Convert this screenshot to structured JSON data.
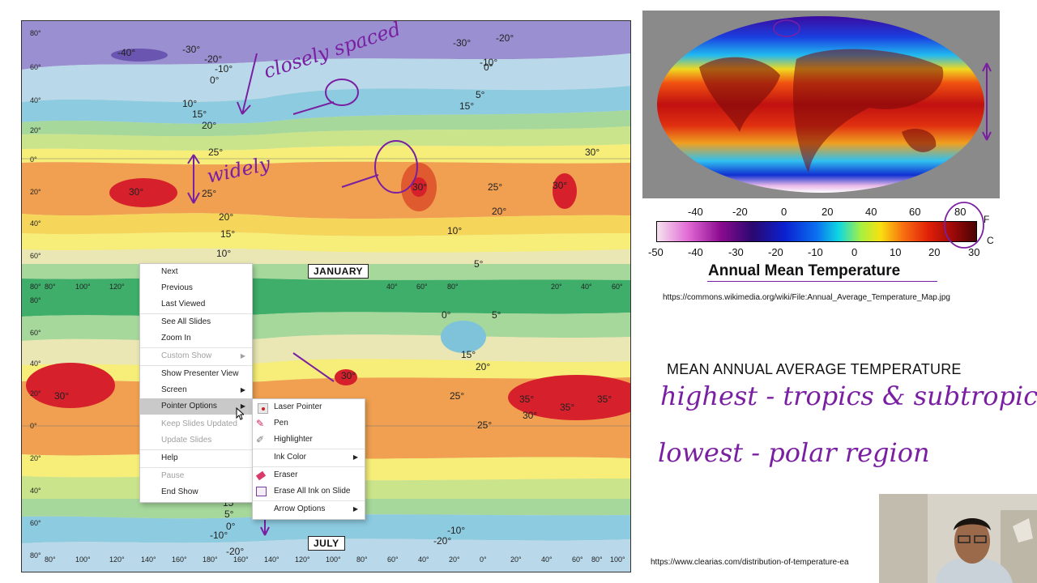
{
  "january_map": {
    "label": "JANUARY",
    "lat_labels": [
      "80°",
      "60°",
      "40°",
      "20°",
      "0°",
      "20°",
      "40°",
      "60°",
      "80°"
    ],
    "isotherm_labels": [
      "-40°",
      "-30°",
      "-20°",
      "-10°",
      "-30°",
      "-20°",
      "-10°",
      "0°",
      "10°",
      "15°",
      "20°",
      "25°",
      "30°",
      "30°",
      "30°",
      "30°",
      "25°",
      "20°",
      "20°",
      "15°",
      "10°",
      "10°",
      "5°",
      "0°",
      "5°",
      "15°",
      "25°"
    ],
    "lon_labels": [
      "80°",
      "100°",
      "120°",
      "40°",
      "60°",
      "80°",
      "20°",
      "40°",
      "60°"
    ]
  },
  "july_map": {
    "label": "JULY",
    "lat_labels": [
      "80°",
      "60°",
      "40°",
      "20°",
      "0°",
      "20°",
      "40°",
      "60°",
      "80°"
    ],
    "isotherm_labels": [
      "0°",
      "5°",
      "15°",
      "20°",
      "25°",
      "30°",
      "30°",
      "35°",
      "35°",
      "35°",
      "30°",
      "25°",
      "15°",
      "5°",
      "0°",
      "-10°",
      "-10°",
      "-20°",
      "-20°"
    ],
    "lon_labels": [
      "80°",
      "100°",
      "120°",
      "140°",
      "160°",
      "180°",
      "160°",
      "140°",
      "120°",
      "100°",
      "80°",
      "60°",
      "40°",
      "20°",
      "0°",
      "20°",
      "40°",
      "60°",
      "80°",
      "100°"
    ]
  },
  "annotations": {
    "closely_spaced": "closely spaced",
    "widely": "widely"
  },
  "context_menu": {
    "items": [
      {
        "label": "Next",
        "enabled": true,
        "submenu": false
      },
      {
        "label": "Previous",
        "enabled": true,
        "submenu": false
      },
      {
        "label": "Last Viewed",
        "enabled": true,
        "submenu": false
      },
      {
        "label": "See All Slides",
        "enabled": true,
        "submenu": false
      },
      {
        "label": "Zoom In",
        "enabled": true,
        "submenu": false
      },
      {
        "label": "Custom Show",
        "enabled": false,
        "submenu": true
      },
      {
        "label": "Show Presenter View",
        "enabled": true,
        "submenu": false
      },
      {
        "label": "Screen",
        "enabled": true,
        "submenu": true
      },
      {
        "label": "Pointer Options",
        "enabled": true,
        "submenu": true
      },
      {
        "label": "Keep Slides Updated",
        "enabled": false,
        "submenu": false
      },
      {
        "label": "Update Slides",
        "enabled": false,
        "submenu": false
      },
      {
        "label": "Help",
        "enabled": true,
        "submenu": false
      },
      {
        "label": "Pause",
        "enabled": false,
        "submenu": false
      },
      {
        "label": "End Show",
        "enabled": true,
        "submenu": false
      }
    ]
  },
  "pointer_submenu": {
    "items": [
      {
        "label": "Laser Pointer",
        "icon": "laser-pointer-icon"
      },
      {
        "label": "Pen",
        "icon": "pen-icon"
      },
      {
        "label": "Highlighter",
        "icon": "highlighter-icon"
      },
      {
        "label": "Ink Color",
        "icon": "",
        "submenu": true
      },
      {
        "label": "Eraser",
        "icon": "eraser-icon"
      },
      {
        "label": "Erase All Ink on Slide",
        "icon": "erase-all-icon"
      },
      {
        "label": "Arrow Options",
        "icon": "",
        "submenu": true
      }
    ]
  },
  "colorbar": {
    "fahrenheit_ticks": [
      "-40",
      "-20",
      "0",
      "20",
      "40",
      "60",
      "80"
    ],
    "celsius_ticks": [
      "-50",
      "-40",
      "-30",
      "-20",
      "-10",
      "0",
      "10",
      "20",
      "30"
    ],
    "unit_f": "F",
    "unit_c": "C",
    "title": "Annual Mean Temperature"
  },
  "source_url_1": "https://commons.wikimedia.org/wiki/File:Annual_Average_Temperature_Map.jpg",
  "mean_title": "MEAN ANNUAL AVERAGE TEMPERATURE",
  "handwriting": {
    "line1": "highest - tropics & subtropics",
    "line2": "lowest - polar region"
  },
  "source_url_2": "https://www.clearias.com/distribution-of-temperature-ea",
  "colors": {
    "ink": "#7a1fa2",
    "menu_highlight": "#c9c9c9"
  }
}
